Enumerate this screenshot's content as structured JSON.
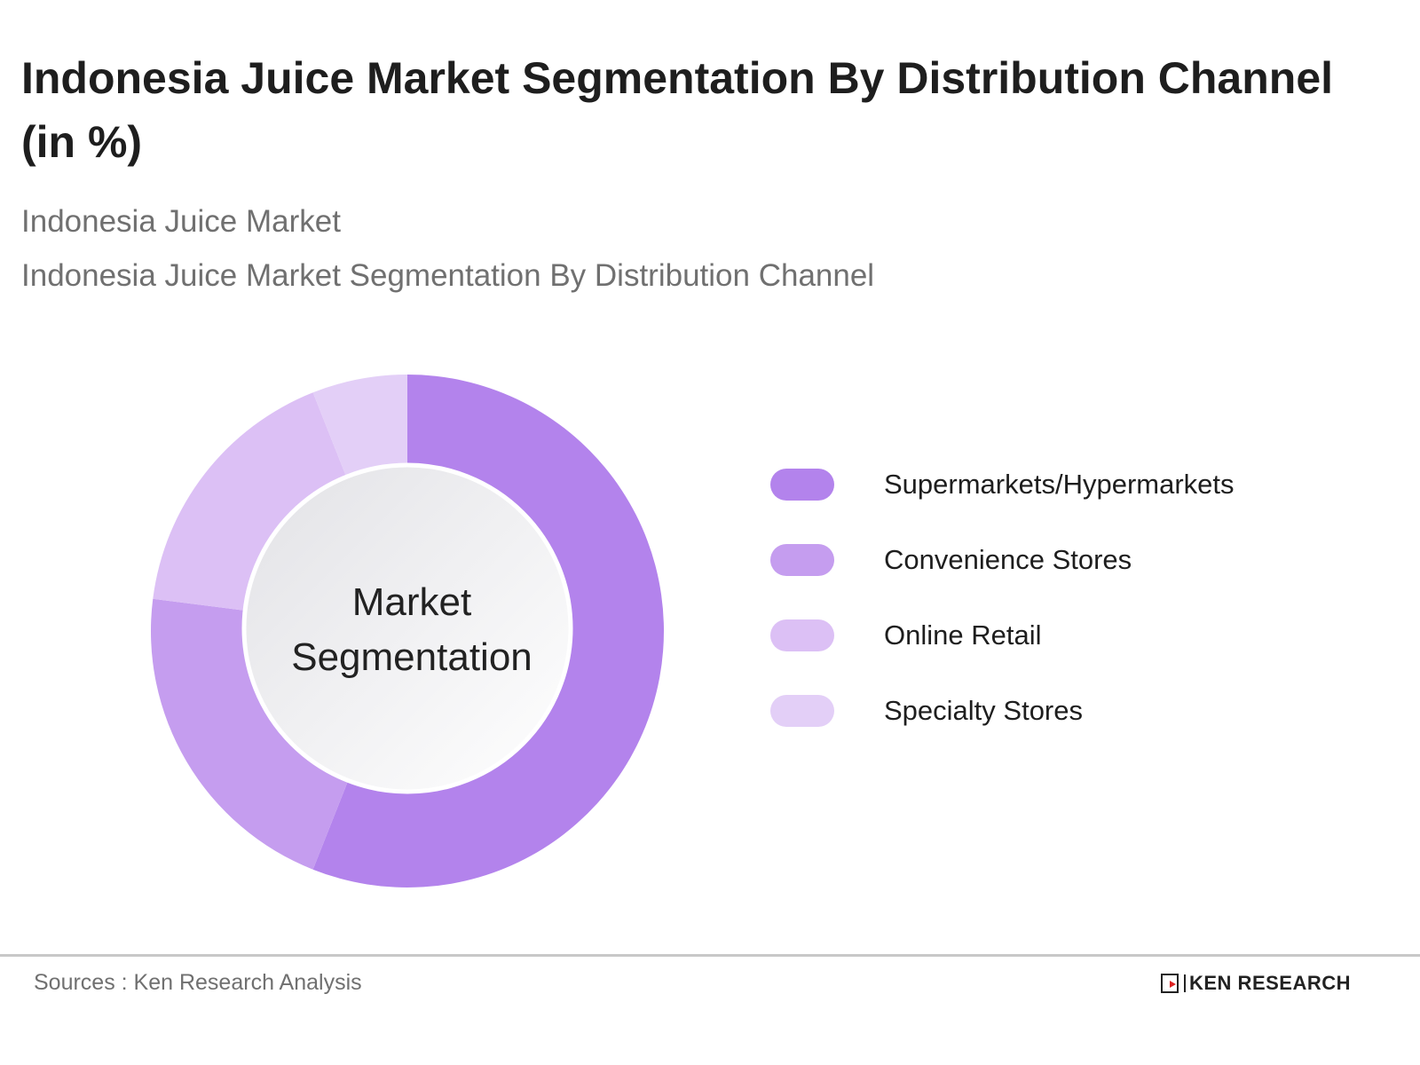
{
  "header": {
    "title": "Indonesia Juice Market Segmentation By Distribution Channel (in %)",
    "subtitle_1": "Indonesia Juice Market",
    "subtitle_2": "Indonesia Juice Market Segmentation By Distribution Channel"
  },
  "chart_data": {
    "type": "pie",
    "variant": "donut",
    "title": "Indonesia Juice Market Segmentation By Distribution Channel (in %)",
    "center_label": [
      "Market",
      "Segmentation"
    ],
    "categories": [
      "Supermarkets/Hypermarkets",
      "Convenience Stores",
      "Online Retail",
      "Specialty Stores"
    ],
    "values": [
      56,
      21,
      17,
      6
    ],
    "colors": [
      "#b383ec",
      "#c59def",
      "#dcc0f5",
      "#e3cff7"
    ],
    "legend_position": "right"
  },
  "footer": {
    "source": "Sources : Ken Research Analysis",
    "logo_text": "KEN RESEARCH",
    "logo_mark": "K"
  }
}
